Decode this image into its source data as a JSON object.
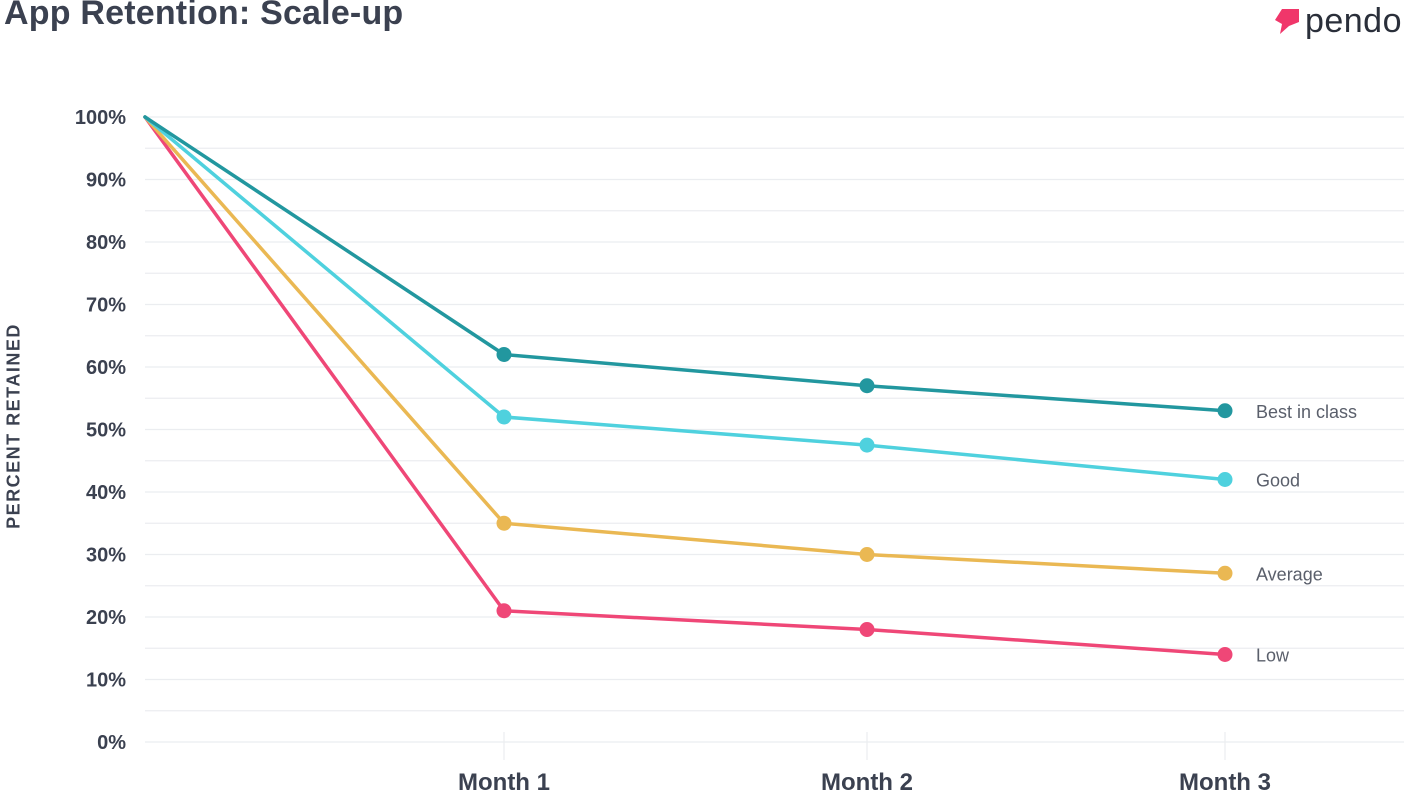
{
  "logo": {
    "text": "pendo",
    "color": "#f0366a"
  },
  "chart_data": {
    "type": "line",
    "title": "App Retention: Scale-up",
    "xlabel": "",
    "ylabel": "PERCENT RETAINED",
    "x": [
      "",
      "Month 1",
      "Month 2",
      "Month 3"
    ],
    "ylim": [
      0,
      100
    ],
    "yticks": [
      0,
      10,
      20,
      30,
      40,
      50,
      60,
      70,
      80,
      90,
      100
    ],
    "ytick_labels": [
      "0%",
      "10%",
      "20%",
      "30%",
      "40%",
      "50%",
      "60%",
      "70%",
      "80%",
      "90%",
      "100%"
    ],
    "grid": true,
    "legend": "labels at line ends",
    "series": [
      {
        "name": "Best in class",
        "color": "#22979f",
        "values": [
          100,
          62,
          57,
          53
        ]
      },
      {
        "name": "Good",
        "color": "#4fd1de",
        "values": [
          100,
          52,
          47.5,
          42
        ]
      },
      {
        "name": "Average",
        "color": "#eab853",
        "values": [
          100,
          35,
          30,
          27
        ]
      },
      {
        "name": "Low",
        "color": "#ef4777",
        "values": [
          100,
          21,
          18,
          14
        ]
      }
    ]
  }
}
